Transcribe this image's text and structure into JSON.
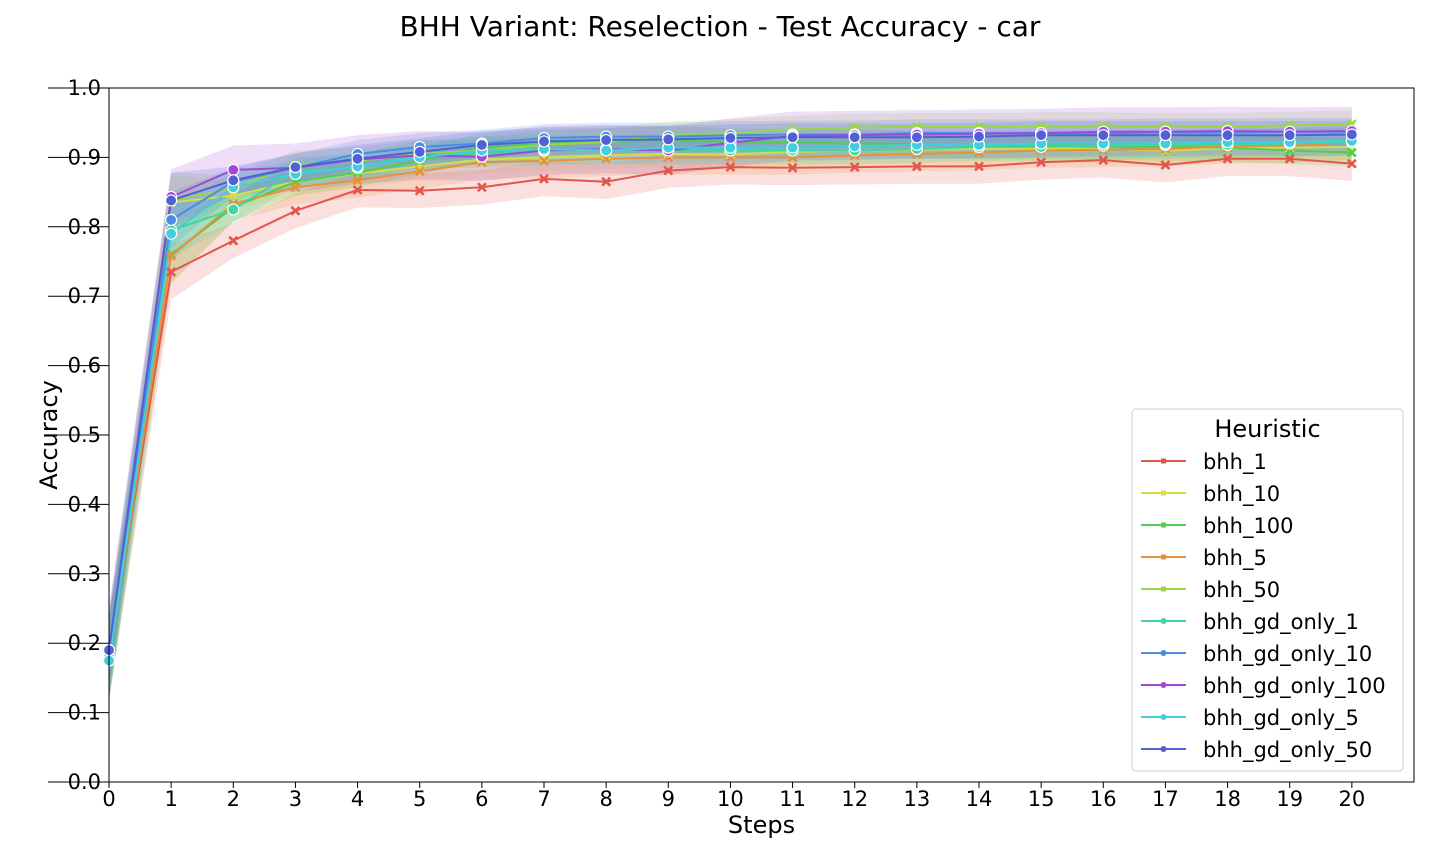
{
  "chart_data": {
    "type": "line",
    "title": "BHH Variant: Reselection - Test Accuracy - car",
    "xlabel": "Steps",
    "ylabel": "Accuracy",
    "x": [
      0,
      1,
      2,
      3,
      4,
      5,
      6,
      7,
      8,
      9,
      10,
      11,
      12,
      13,
      14,
      15,
      16,
      17,
      18,
      19,
      20
    ],
    "xlim": [
      0,
      21
    ],
    "ylim": [
      0.0,
      1.0
    ],
    "yticks": [
      "0.0",
      "0.1",
      "0.2",
      "0.3",
      "0.4",
      "0.5",
      "0.6",
      "0.7",
      "0.8",
      "0.9",
      "1.0"
    ],
    "xticks": [
      "0",
      "1",
      "2",
      "3",
      "4",
      "5",
      "6",
      "7",
      "8",
      "9",
      "10",
      "11",
      "12",
      "13",
      "14",
      "15",
      "16",
      "17",
      "18",
      "19",
      "20"
    ],
    "grid": false,
    "legend": {
      "title": "Heuristic",
      "placement": "lower-right"
    },
    "series": [
      {
        "name": "bhh_1",
        "color": "#e2574c",
        "marker": "x",
        "band": 0.025,
        "values": [
          0.18,
          0.735,
          0.78,
          0.823,
          0.853,
          0.852,
          0.857,
          0.869,
          0.865,
          0.881,
          0.886,
          0.885,
          0.886,
          0.887,
          0.887,
          0.893,
          0.896,
          0.889,
          0.898,
          0.898,
          0.891
        ]
      },
      {
        "name": "bhh_10",
        "color": "#d6dd45",
        "marker": "x",
        "band": 0.02,
        "values": [
          0.18,
          0.835,
          0.845,
          0.865,
          0.877,
          0.887,
          0.897,
          0.9,
          0.903,
          0.905,
          0.904,
          0.908,
          0.91,
          0.911,
          0.912,
          0.913,
          0.912,
          0.91,
          0.913,
          0.914,
          0.915
        ]
      },
      {
        "name": "bhh_100",
        "color": "#4fcf4b",
        "marker": "x",
        "band": 0.02,
        "values": [
          0.175,
          0.76,
          0.828,
          0.865,
          0.878,
          0.895,
          0.915,
          0.921,
          0.922,
          0.925,
          0.922,
          0.921,
          0.92,
          0.919,
          0.917,
          0.918,
          0.916,
          0.915,
          0.914,
          0.91,
          0.907
        ]
      },
      {
        "name": "bhh_5",
        "color": "#e8903d",
        "marker": "x",
        "band": 0.025,
        "values": [
          0.18,
          0.758,
          0.833,
          0.857,
          0.867,
          0.88,
          0.893,
          0.895,
          0.898,
          0.9,
          0.9,
          0.9,
          0.903,
          0.905,
          0.907,
          0.91,
          0.911,
          0.912,
          0.916,
          0.917,
          0.922
        ]
      },
      {
        "name": "bhh_50",
        "color": "#97d843",
        "marker": "x",
        "band": 0.02,
        "values": [
          0.175,
          0.838,
          0.855,
          0.89,
          0.895,
          0.905,
          0.91,
          0.918,
          0.922,
          0.932,
          0.935,
          0.94,
          0.943,
          0.944,
          0.944,
          0.945,
          0.945,
          0.944,
          0.944,
          0.946,
          0.948
        ]
      },
      {
        "name": "bhh_gd_only_1",
        "color": "#3fd7a0",
        "marker": "o",
        "band": 0.02,
        "values": [
          0.175,
          0.795,
          0.825,
          0.88,
          0.885,
          0.905,
          0.905,
          0.91,
          0.91,
          0.91,
          0.91,
          0.91,
          0.91,
          0.912,
          0.915,
          0.915,
          0.917,
          0.918,
          0.918,
          0.92,
          0.922
        ]
      },
      {
        "name": "bhh_gd_only_10",
        "color": "#4a8ee0",
        "marker": "o",
        "band": 0.02,
        "values": [
          0.18,
          0.81,
          0.865,
          0.885,
          0.905,
          0.915,
          0.92,
          0.928,
          0.93,
          0.93,
          0.932,
          0.933,
          0.933,
          0.935,
          0.935,
          0.935,
          0.935,
          0.936,
          0.936,
          0.937,
          0.937
        ]
      },
      {
        "name": "bhh_gd_only_100",
        "color": "#a349d9",
        "marker": "o",
        "band": 0.035,
        "values": [
          0.19,
          0.843,
          0.882,
          0.885,
          0.897,
          0.903,
          0.901,
          0.91,
          0.912,
          0.91,
          0.921,
          0.931,
          0.932,
          0.933,
          0.934,
          0.935,
          0.937,
          0.937,
          0.938,
          0.937,
          0.938
        ]
      },
      {
        "name": "bhh_gd_only_5",
        "color": "#3fcfdf",
        "marker": "o",
        "band": 0.02,
        "values": [
          0.175,
          0.79,
          0.857,
          0.876,
          0.887,
          0.9,
          0.91,
          0.912,
          0.91,
          0.914,
          0.914,
          0.914,
          0.916,
          0.918,
          0.918,
          0.92,
          0.92,
          0.92,
          0.922,
          0.922,
          0.924
        ]
      },
      {
        "name": "bhh_gd_only_50",
        "color": "#5060d8",
        "marker": "o",
        "band": 0.02,
        "values": [
          0.19,
          0.838,
          0.867,
          0.886,
          0.898,
          0.908,
          0.918,
          0.923,
          0.925,
          0.926,
          0.928,
          0.929,
          0.929,
          0.929,
          0.93,
          0.932,
          0.932,
          0.932,
          0.932,
          0.932,
          0.933
        ]
      }
    ]
  }
}
